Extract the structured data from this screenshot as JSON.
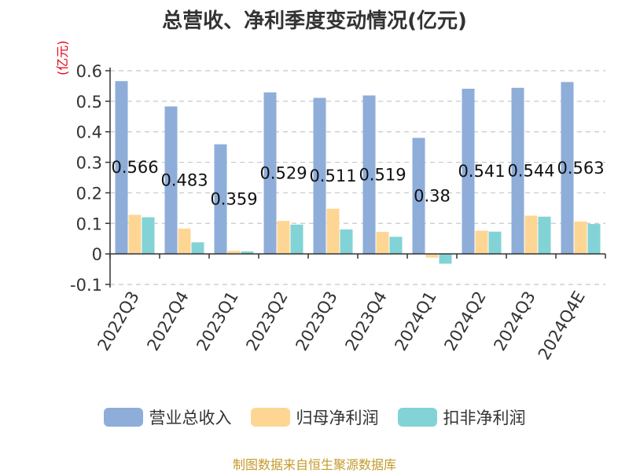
{
  "chart_data": {
    "type": "bar",
    "title": "总营收、净利季度变动情况(亿元)",
    "unit_label": "(亿元)",
    "categories": [
      "2022Q3",
      "2022Q4",
      "2023Q1",
      "2023Q2",
      "2023Q3",
      "2023Q4",
      "2024Q1",
      "2024Q2",
      "2024Q3",
      "2024Q4E"
    ],
    "series": [
      {
        "name": "营业总收入",
        "color": "#8eadd9",
        "values": [
          0.566,
          0.483,
          0.359,
          0.529,
          0.511,
          0.519,
          0.38,
          0.541,
          0.544,
          0.563
        ]
      },
      {
        "name": "归母净利润",
        "color": "#fed694",
        "values": [
          0.128,
          0.083,
          0.01,
          0.108,
          0.148,
          0.072,
          -0.012,
          0.076,
          0.125,
          0.106
        ]
      },
      {
        "name": "扣非净利润",
        "color": "#82d3d6",
        "values": [
          0.12,
          0.038,
          0.008,
          0.096,
          0.08,
          0.056,
          -0.032,
          0.073,
          0.122,
          0.098
        ]
      }
    ],
    "data_labels": [
      "0.566",
      "0.483",
      "0.359",
      "0.529",
      "0.511",
      "0.519",
      "0.38",
      "0.541",
      "0.544",
      "0.563"
    ],
    "yticks": [
      "-0.1",
      "0",
      "0.1",
      "0.2",
      "0.3",
      "0.4",
      "0.5",
      "0.6"
    ],
    "ylim": [
      -0.1,
      0.6
    ],
    "grid": true,
    "legend_position": "bottom"
  },
  "source": "制图数据来自恒生聚源数据库"
}
